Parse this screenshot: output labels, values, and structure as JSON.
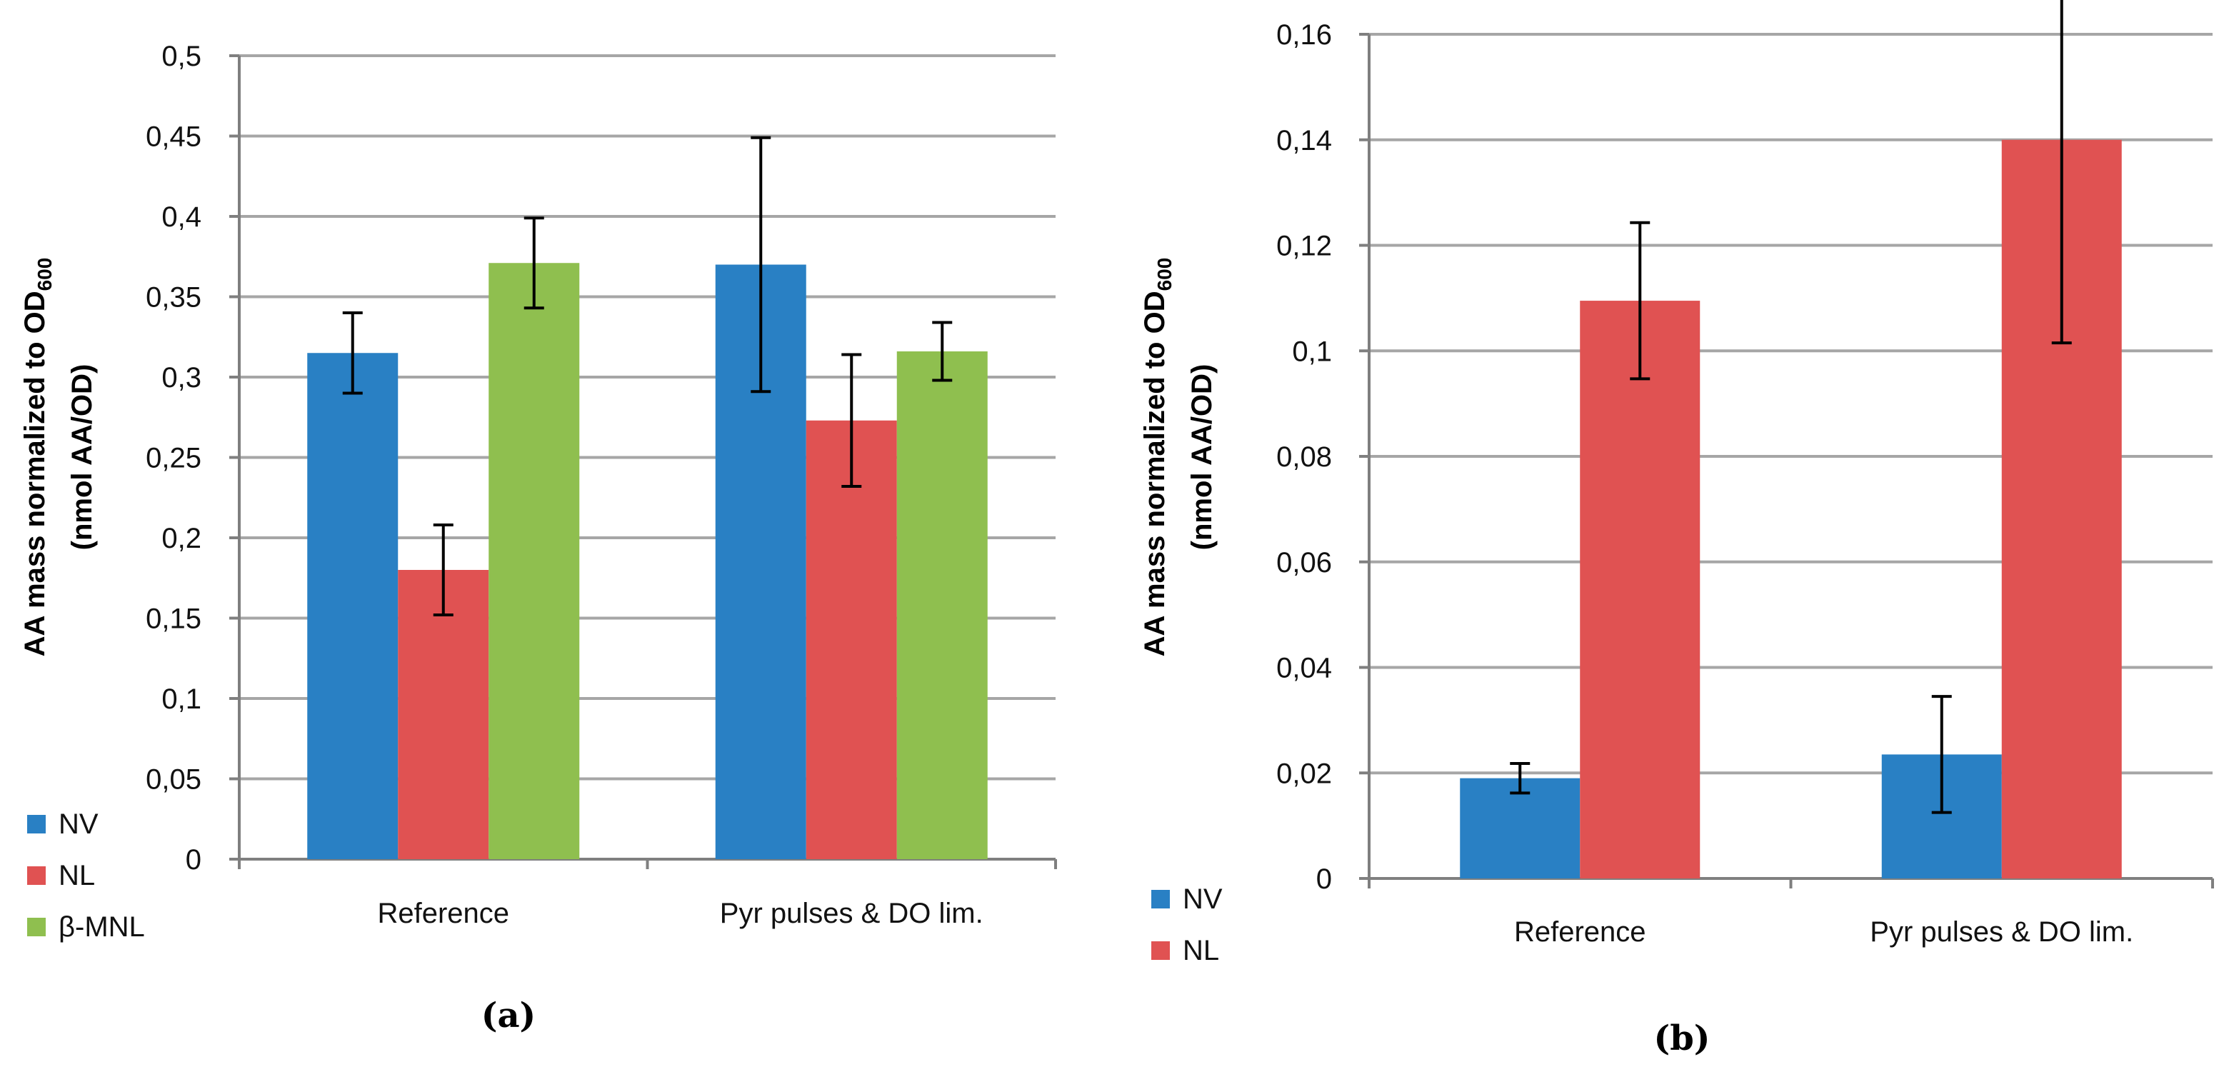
{
  "colors": {
    "NV": "#2980c4",
    "NL": "#e05252",
    "β-MNL": "#8fbf4f",
    "grid": "#a6a6a6",
    "axis": "#7f7f7f",
    "error": "#000000"
  },
  "chart_data": [
    {
      "type": "bar",
      "panel_label": "(a)",
      "categories": [
        "Reference",
        "Pyr pulses & DO lim."
      ],
      "series": [
        {
          "name": "NV",
          "values": [
            0.315,
            0.37
          ],
          "errors": [
            0.025,
            0.079
          ]
        },
        {
          "name": "NL",
          "values": [
            0.18,
            0.273
          ],
          "errors": [
            0.028,
            0.041
          ]
        },
        {
          "name": "β-MNL",
          "values": [
            0.371,
            0.316
          ],
          "errors": [
            0.028,
            0.018
          ]
        }
      ],
      "ylabel": "AA mass normalized to OD",
      "ylabel_sub": "600",
      "ylabel2": "(nmol AA/OD)",
      "ylim": [
        0,
        0.5
      ],
      "yticks": [
        "0",
        "0,05",
        "0,1",
        "0,15",
        "0,2",
        "0,25",
        "0,3",
        "0,35",
        "0,4",
        "0,45",
        "0,5"
      ],
      "grid": true,
      "legend": "bottom-left"
    },
    {
      "type": "bar",
      "panel_label": "(b)",
      "categories": [
        "Reference",
        "Pyr pulses & DO lim."
      ],
      "series": [
        {
          "name": "NV",
          "values": [
            0.019,
            0.0235
          ],
          "errors": [
            0.0028,
            0.011
          ]
        },
        {
          "name": "NL",
          "values": [
            0.1095,
            0.14
          ],
          "errors": [
            0.0148,
            0.0385
          ]
        }
      ],
      "ylabel": "AA mass normalized to OD",
      "ylabel_sub": "600",
      "ylabel2": "(nmol AA/OD)",
      "ylim": [
        0,
        0.16
      ],
      "yticks": [
        "0",
        "0,02",
        "0,04",
        "0,06",
        "0,08",
        "0,1",
        "0,12",
        "0,14",
        "0,16"
      ],
      "grid": true,
      "legend": "bottom-left"
    }
  ]
}
